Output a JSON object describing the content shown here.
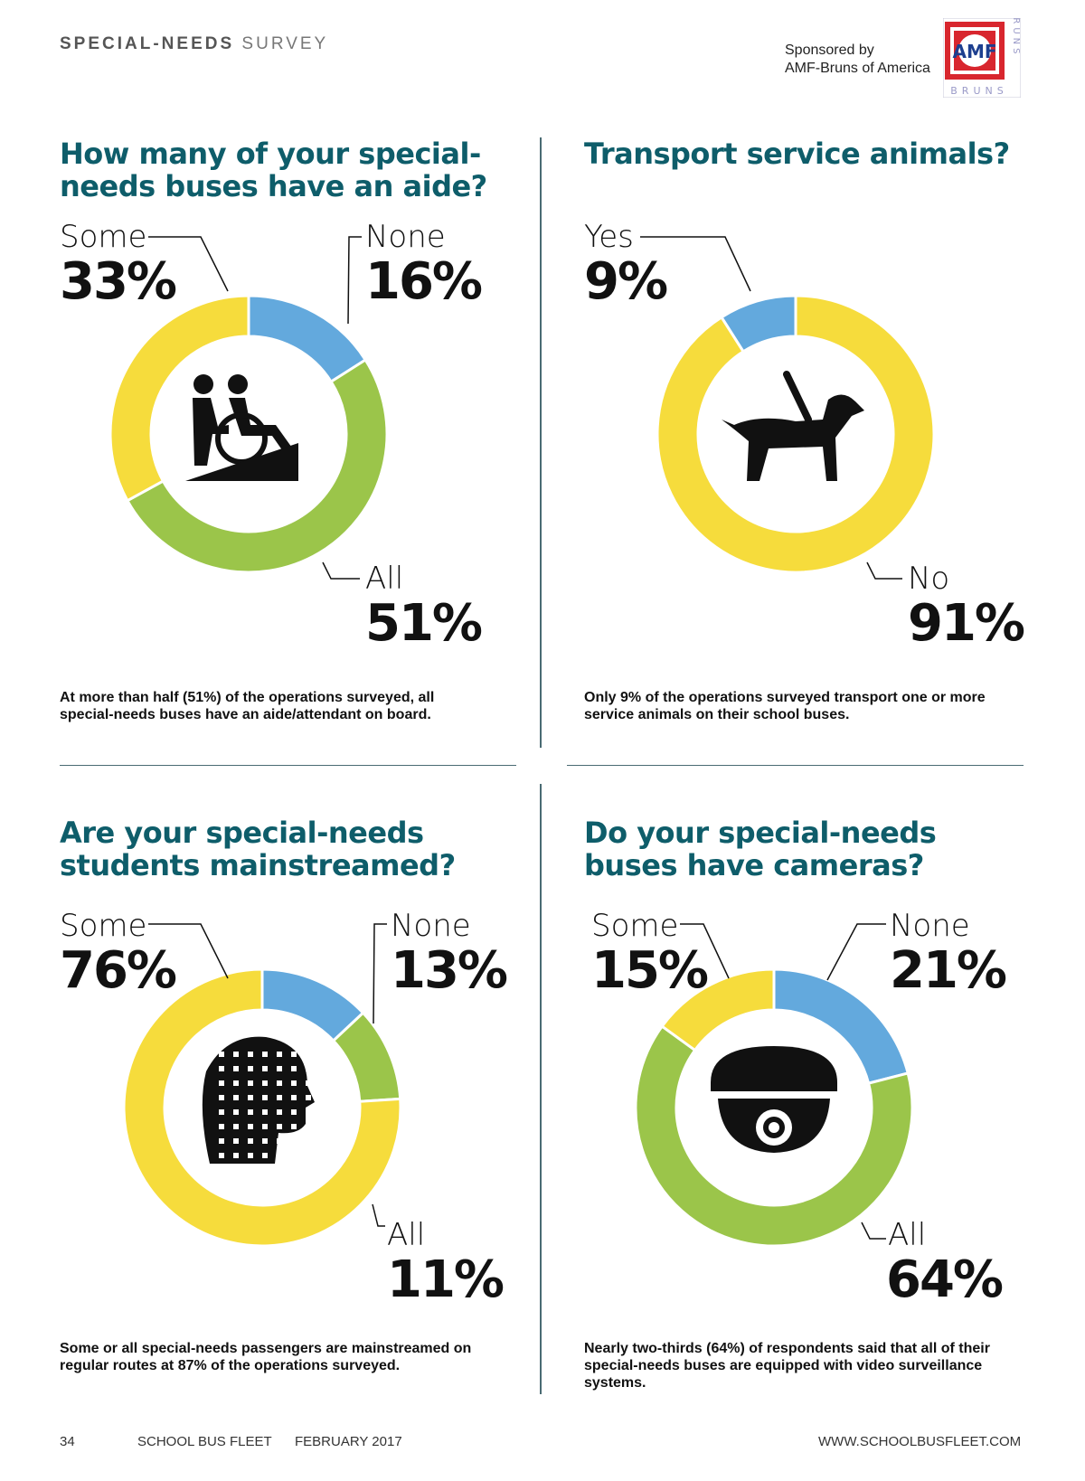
{
  "header": {
    "title_bold": "SPECIAL-NEEDS",
    "title_light": "SURVEY",
    "sponsor_line1": "Sponsored by",
    "sponsor_line2": "AMF-Bruns of America",
    "logo_text": "AMF",
    "logo_side": "BRUNS"
  },
  "colors": {
    "yellow": "#f6dc3c",
    "blue": "#63a9dd",
    "green": "#9bc54a",
    "title": "#0e5d6a"
  },
  "chart_data": [
    {
      "type": "pie",
      "title": "How many of your special-needs buses have an aide?",
      "icon": "wheelchair-aide-icon",
      "slices": [
        {
          "name": "None",
          "value": 16,
          "color": "#63a9dd"
        },
        {
          "name": "All",
          "value": 51,
          "color": "#9bc54a"
        },
        {
          "name": "Some",
          "value": 33,
          "color": "#f6dc3c"
        }
      ],
      "labels": {
        "some": {
          "word": "Some",
          "value": "33%"
        },
        "none": {
          "word": "None",
          "value": "16%"
        },
        "all": {
          "word": "All",
          "value": "51%"
        }
      },
      "caption": "At more than half (51%) of the operations surveyed, all special-needs buses have an aide/attendant on board."
    },
    {
      "type": "pie",
      "title": "Transport service animals?",
      "icon": "service-dog-icon",
      "slices": [
        {
          "name": "No",
          "value": 91,
          "color": "#f6dc3c"
        },
        {
          "name": "Yes",
          "value": 9,
          "color": "#63a9dd"
        }
      ],
      "labels": {
        "yes": {
          "word": "Yes",
          "value": "9%"
        },
        "no": {
          "word": "No",
          "value": "91%"
        }
      },
      "caption": "Only 9% of the operations surveyed transport one or more service animals on their school buses."
    },
    {
      "type": "pie",
      "title": "Are your special-needs students mainstreamed?",
      "icon": "puzzle-head-icon",
      "slices": [
        {
          "name": "None",
          "value": 13,
          "color": "#63a9dd"
        },
        {
          "name": "All",
          "value": 11,
          "color": "#9bc54a"
        },
        {
          "name": "Some",
          "value": 76,
          "color": "#f6dc3c"
        }
      ],
      "labels": {
        "some": {
          "word": "Some",
          "value": "76%"
        },
        "none": {
          "word": "None",
          "value": "13%"
        },
        "all": {
          "word": "All",
          "value": "11%"
        }
      },
      "caption": "Some or all special-needs passengers are mainstreamed on regular routes at 87% of the operations surveyed."
    },
    {
      "type": "pie",
      "title": "Do your special-needs buses have cameras?",
      "icon": "security-camera-icon",
      "slices": [
        {
          "name": "None",
          "value": 21,
          "color": "#63a9dd"
        },
        {
          "name": "All",
          "value": 64,
          "color": "#9bc54a"
        },
        {
          "name": "Some",
          "value": 15,
          "color": "#f6dc3c"
        }
      ],
      "labels": {
        "some": {
          "word": "Some",
          "value": "15%"
        },
        "none": {
          "word": "None",
          "value": "21%"
        },
        "all": {
          "word": "All",
          "value": "64%"
        }
      },
      "caption": "Nearly two-thirds (64%) of respondents said that all of their special-needs buses are equipped with video surveillance systems."
    }
  ],
  "footer": {
    "page": "34",
    "magazine": "SCHOOL BUS FLEET",
    "issue": "FEBRUARY 2017",
    "url": "WWW.SCHOOLBUSFLEET.COM"
  }
}
